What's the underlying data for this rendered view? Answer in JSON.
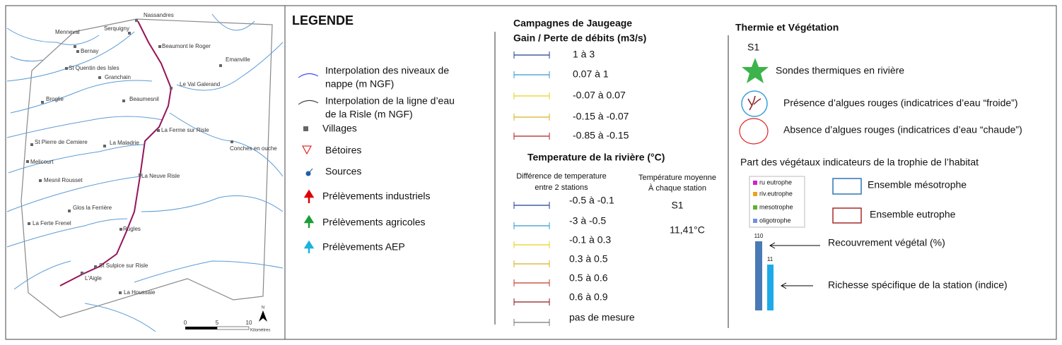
{
  "map": {
    "places": [
      "Nassandres",
      "Serquigny",
      "Menneval",
      "Bernay",
      "Beaumont le Roger",
      "Emanville",
      "St Quentin des Isles",
      "Granchain",
      "Le Val Galerand",
      "Broglie",
      "Beaumesnil",
      "La Ferme sur Risle",
      "St Pierre de Cemiere",
      "La Maladrie",
      "Conches en ouche",
      "Melicourt",
      "La Neuve Risle",
      "Mesnil Rousset",
      "Glos la Ferrière",
      "La Ferte Frenel",
      "Rugles",
      "St Sulpice sur Risle",
      "L'Aigle",
      "La Houssaie"
    ],
    "scale": [
      "0",
      "5",
      "10",
      "Kilomètres"
    ],
    "north": "N"
  },
  "legend": {
    "title": "LEGENDE",
    "items": [
      [
        "Interpolation des niveaux de",
        "nappe (m NGF)"
      ],
      [
        "Interpolation de la ligne d’eau",
        "de la Risle (m NGF)"
      ],
      [
        "Villages"
      ],
      [
        "Bétoires"
      ],
      [
        "Sources"
      ],
      [
        "Prélèvements industriels"
      ],
      [
        "Prélèvements agricoles"
      ],
      [
        "Prélèvements AEP"
      ]
    ]
  },
  "jaugeage": {
    "title": [
      "Campagnes de Jaugeage",
      "Gain / Perte de débits (m3/s)"
    ],
    "items": [
      "1 à 3",
      "0.07 à 1",
      "-0.07 à 0.07",
      "-0.15 à -0.07",
      "-0.85 à -0.15"
    ]
  },
  "temperature": {
    "title": "Temperature de la rivière (°C)",
    "diff_header": [
      "Différence de temperature",
      "entre 2 stations"
    ],
    "mean_header": [
      "Température moyenne",
      "À chaque station"
    ],
    "station": "S1",
    "mean": "11,41°C",
    "items": [
      "-0.5 à -0.1",
      "-3 à -0.5",
      "-0.1 à 0.3",
      "0.3 à 0.5",
      "0.5 à 0.6",
      "0.6 à 0.9",
      "pas de mesure"
    ]
  },
  "thermie": {
    "title": "Thermie et Végétation",
    "station": "S1",
    "items": [
      "Sondes thermiques en rivière",
      "Présence d’algues rouges (indicatrices d’eau “froide”)",
      "Absence d’algues rouges (indicatrices d’eau “chaude”)"
    ],
    "vegetation_title": "Part des végétaux indicateurs de la trophie de l’habitat",
    "trophie": [
      "ru eutrophe",
      "riv.eutrophe",
      "mesotrophe",
      "oligotrophe"
    ],
    "ensembles": [
      "Ensemble mésotrophe",
      "Ensemble eutrophe"
    ],
    "bar_labels": [
      "110",
      "11"
    ],
    "bar_notes": [
      "Recouvrement végétal (%)",
      "Richesse spécifique de la station (indice)"
    ]
  }
}
